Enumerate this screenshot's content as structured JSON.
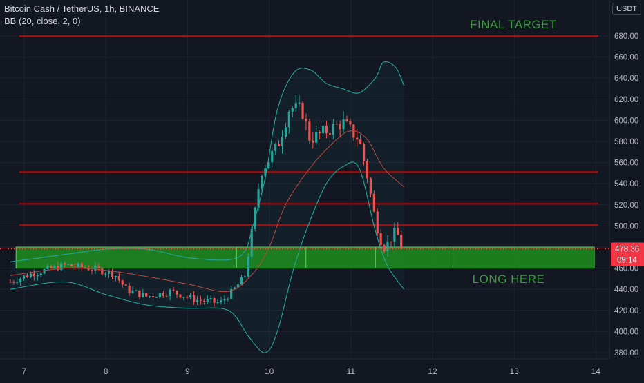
{
  "header": {
    "symbol": "Bitcoin Cash / TetherUS, 1h, BINANCE",
    "indicator": "BB (20, close, 2, 0)",
    "currency": "USDT"
  },
  "price_tag": {
    "value": "478.36",
    "countdown": "09:14"
  },
  "annotations": {
    "final_target": "FINAL TARGET",
    "long_here": "LONG HERE"
  },
  "colors": {
    "background": "#131722",
    "grid": "#1f2330",
    "up": "#26a69a",
    "down": "#ef5350",
    "resistance": "#c90000",
    "zone_fill": "#1f8f1f",
    "zone_border": "#5cd65c",
    "band": "#26a69a",
    "basis": "#b84a45",
    "label_green": "#3a9b3a"
  },
  "chart_data": {
    "type": "candlestick",
    "title": "Bitcoin Cash / TetherUS, 1h, BINANCE",
    "x_ticks": [
      "7",
      "8",
      "9",
      "10",
      "11",
      "12",
      "13",
      "14"
    ],
    "y_ticks": [
      "380.00",
      "400.00",
      "420.00",
      "440.00",
      "460.00",
      "480.00",
      "500.00",
      "520.00",
      "540.00",
      "560.00",
      "580.00",
      "600.00",
      "620.00",
      "640.00",
      "660.00",
      "680.00"
    ],
    "x_range": [
      6.95,
      14.05
    ],
    "y_range": [
      374,
      696
    ],
    "resistance_levels": [
      680,
      551,
      521,
      501
    ],
    "long_zone": {
      "low": 460,
      "high": 480,
      "x_start": 6.9,
      "x_end": 13.98
    },
    "last_price": 478.36,
    "close_path": [
      [
        6.83,
        447
      ],
      [
        7.1,
        455
      ],
      [
        7.5,
        463
      ],
      [
        7.8,
        460
      ],
      [
        8.1,
        455
      ],
      [
        8.25,
        440
      ],
      [
        8.5,
        433
      ],
      [
        8.8,
        438
      ],
      [
        9.1,
        430
      ],
      [
        9.4,
        427
      ],
      [
        9.55,
        438
      ],
      [
        9.7,
        452
      ],
      [
        9.8,
        500
      ],
      [
        9.9,
        552
      ],
      [
        10.1,
        575
      ],
      [
        10.25,
        612
      ],
      [
        10.4,
        610
      ],
      [
        10.5,
        582
      ],
      [
        10.7,
        590
      ],
      [
        10.9,
        598
      ],
      [
        11.1,
        582
      ],
      [
        11.2,
        548
      ],
      [
        11.3,
        505
      ],
      [
        11.4,
        478
      ],
      [
        11.55,
        495
      ],
      [
        11.65,
        478
      ]
    ],
    "bollinger": {
      "upper": [
        [
          6.83,
          466
        ],
        [
          7.5,
          473
        ],
        [
          8.0,
          478
        ],
        [
          8.5,
          478
        ],
        [
          9.0,
          470
        ],
        [
          9.5,
          468
        ],
        [
          9.7,
          476
        ],
        [
          9.8,
          500
        ],
        [
          9.95,
          545
        ],
        [
          10.1,
          610
        ],
        [
          10.3,
          645
        ],
        [
          10.5,
          648
        ],
        [
          10.7,
          635
        ],
        [
          10.9,
          630
        ],
        [
          11.1,
          626
        ],
        [
          11.3,
          640
        ],
        [
          11.4,
          655
        ],
        [
          11.55,
          650
        ],
        [
          11.65,
          633
        ]
      ],
      "basis": [
        [
          6.83,
          453
        ],
        [
          7.5,
          460
        ],
        [
          8.0,
          458
        ],
        [
          8.5,
          452
        ],
        [
          9.0,
          445
        ],
        [
          9.5,
          438
        ],
        [
          9.8,
          455
        ],
        [
          10.0,
          480
        ],
        [
          10.2,
          520
        ],
        [
          10.5,
          555
        ],
        [
          10.8,
          580
        ],
        [
          11.0,
          590
        ],
        [
          11.2,
          582
        ],
        [
          11.4,
          555
        ],
        [
          11.65,
          537
        ]
      ],
      "lower": [
        [
          6.83,
          440
        ],
        [
          7.5,
          447
        ],
        [
          8.0,
          435
        ],
        [
          8.5,
          425
        ],
        [
          9.0,
          422
        ],
        [
          9.5,
          420
        ],
        [
          9.75,
          395
        ],
        [
          9.95,
          380
        ],
        [
          10.1,
          400
        ],
        [
          10.3,
          460
        ],
        [
          10.5,
          505
        ],
        [
          10.7,
          540
        ],
        [
          10.9,
          556
        ],
        [
          11.1,
          555
        ],
        [
          11.3,
          495
        ],
        [
          11.45,
          462
        ],
        [
          11.65,
          440
        ]
      ]
    }
  }
}
